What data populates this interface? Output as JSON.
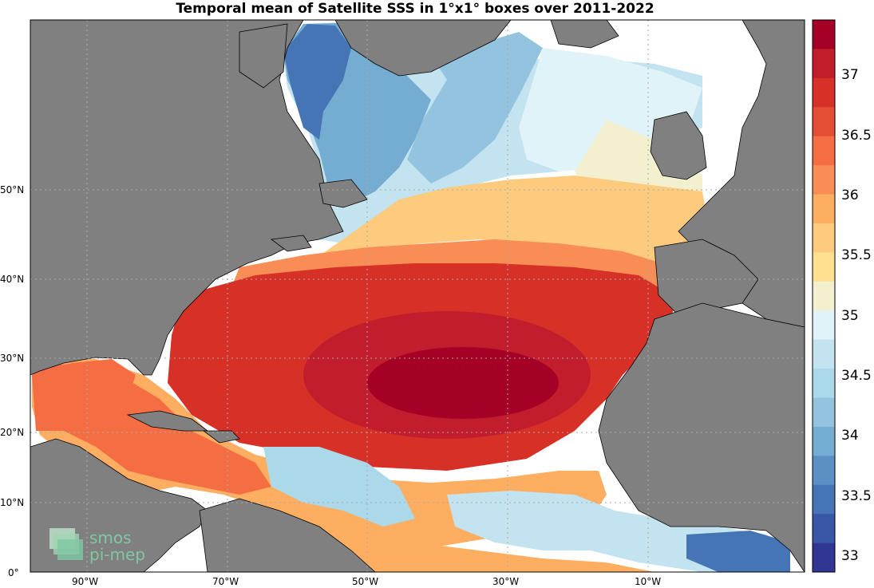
{
  "title": "Temporal mean of Satellite SSS in 1°x1° boxes over 2011-2022",
  "colorbar": {
    "labels": [
      "37",
      "36.5",
      "36",
      "35.5",
      "35",
      "34.5",
      "34",
      "33.5",
      "33"
    ],
    "colors": [
      "#a50026",
      "#c21d2d",
      "#d73027",
      "#e34e34",
      "#f46d43",
      "#f88d55",
      "#fdae61",
      "#fdcb7d",
      "#fee090",
      "#f2f0cf",
      "#e0f3f8",
      "#c2e3ef",
      "#abd9e9",
      "#93c3de",
      "#74add1",
      "#5c8fc4",
      "#4575b4",
      "#3957a6",
      "#313695"
    ]
  },
  "axes": {
    "lon_labels": [
      "90°W",
      "70°W",
      "50°W",
      "30°W",
      "10°W"
    ],
    "lat_labels": [
      "50°N",
      "40°N",
      "30°N",
      "20°N",
      "10°N",
      "0°"
    ]
  },
  "logo": {
    "line1": "smos",
    "line2": "pi-mep"
  },
  "colors": {
    "land": "#808080",
    "nodata": "#ffffff",
    "grid": "#aaaaaa"
  }
}
